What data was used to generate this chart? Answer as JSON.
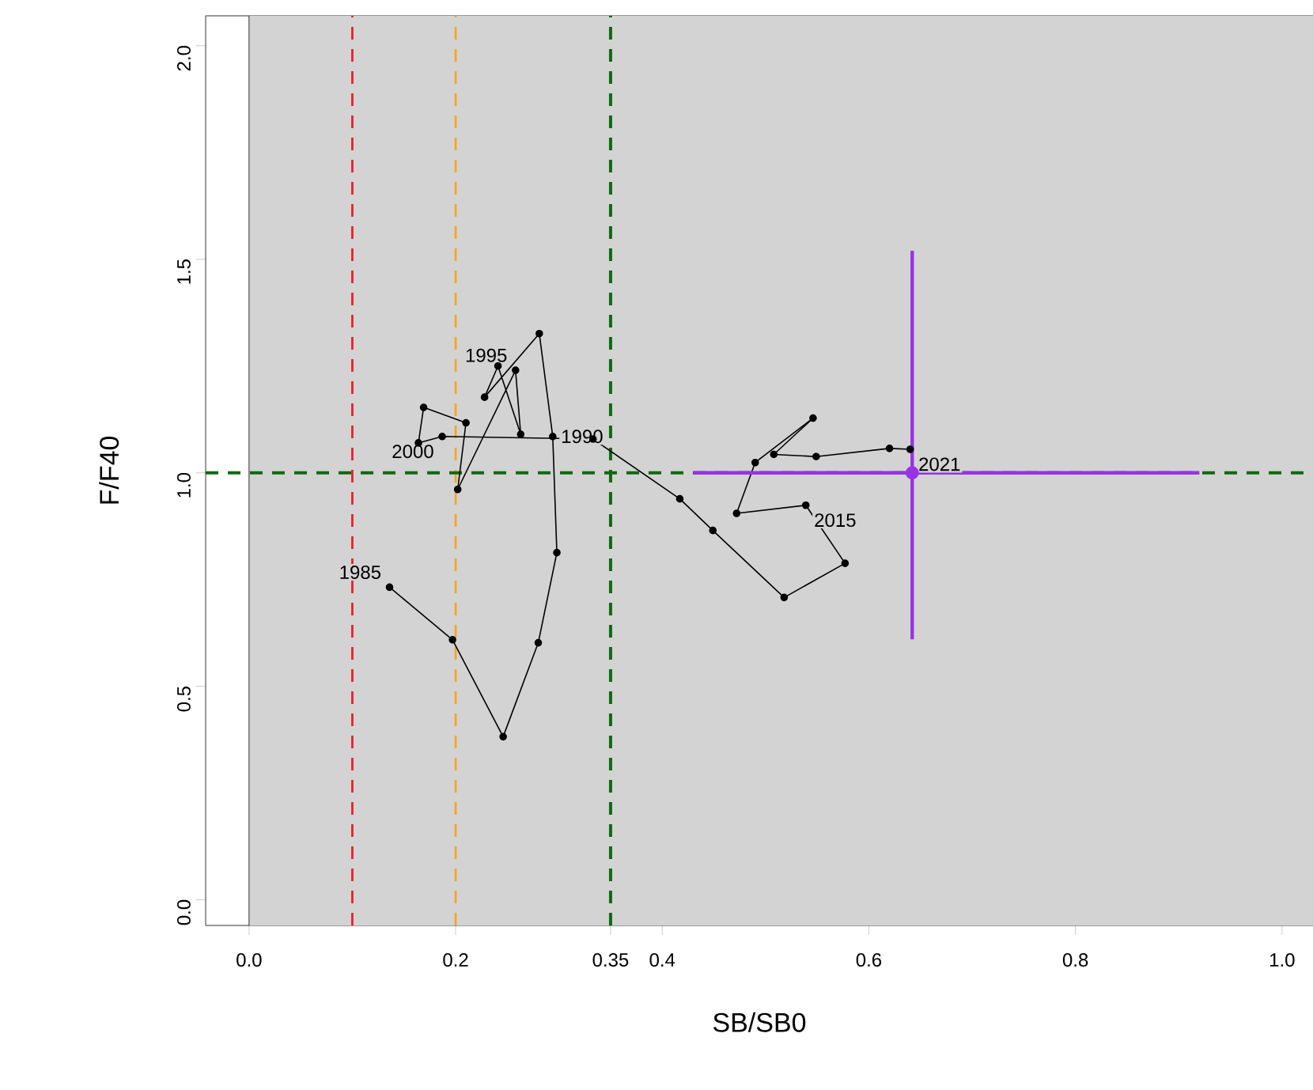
{
  "chart_data": {
    "type": "line",
    "xlabel": "SB/SB0",
    "ylabel": "F/F40",
    "xlim": [
      -0.042,
      1.03
    ],
    "ylim": [
      -0.06,
      2.07
    ],
    "xticks": [
      {
        "value": 0,
        "label": "0.0"
      },
      0.2,
      0.35,
      0.4,
      0.6,
      0.8,
      {
        "value": 1,
        "label": "1.0"
      }
    ],
    "yticks": [
      {
        "value": 0,
        "label": "0.0"
      },
      0.5,
      {
        "value": 1,
        "label": "1.0"
      },
      1.5,
      {
        "value": 2,
        "label": "2.0"
      }
    ],
    "grid": false,
    "marker": "circle",
    "line_style": "solid",
    "series": [
      {
        "color": "#000000",
        "x": [
          0.136,
          0.197,
          0.246,
          0.28,
          0.298,
          0.294,
          0.281,
          0.228,
          0.241,
          0.263,
          0.258,
          0.202,
          0.21,
          0.169,
          0.164,
          0.187,
          0.333,
          0.417,
          0.449,
          0.518,
          0.577,
          0.539,
          0.472,
          0.49,
          0.546,
          0.508,
          0.549,
          0.62,
          0.64
        ],
        "values": [
          0.732,
          0.609,
          0.382,
          0.602,
          0.813,
          1.085,
          1.326,
          1.177,
          1.25,
          1.09,
          1.24,
          0.961,
          1.117,
          1.153,
          1.07,
          1.085,
          1.079,
          0.939,
          0.865,
          0.708,
          0.788,
          0.924,
          0.905,
          1.024,
          1.128,
          1.043,
          1.038,
          1.057,
          1.055
        ]
      },
      {
        "type": "scatter",
        "color": "#9932e6",
        "marker": "circle",
        "x": [
          0.642
        ],
        "values": [
          1.0
        ],
        "errors": [
          [
            0.61,
            1.52
          ]
        ],
        "xerrors": [
          [
            0.43,
            0.92
          ]
        ]
      }
    ],
    "ref_lines": [
      {
        "axis": "x",
        "value": 0.1,
        "color": "#e8202a",
        "line_style": "dashed"
      },
      {
        "axis": "x",
        "value": 0.2,
        "color": "#f5a623",
        "line_style": "dashed"
      },
      {
        "axis": "x",
        "value": 0.35,
        "color": "#0e6b0e",
        "line_style": "dashed"
      },
      {
        "axis": "y",
        "value": 1.0,
        "color": "#0e6b0e",
        "line_style": "dashed"
      }
    ],
    "bands": [
      {
        "axis": "x",
        "from": 0,
        "to": 1.03,
        "color": "#d3d3d3"
      }
    ],
    "annotations": [
      {
        "text": "1985",
        "x": 0.136,
        "y": 0.732
      },
      {
        "text": "1990",
        "x": 0.294,
        "y": 1.085
      },
      {
        "text": "1995",
        "x": 0.258,
        "y": 1.24
      },
      {
        "text": "2000",
        "x": 0.187,
        "y": 1.085
      },
      {
        "text": "2015",
        "x": 0.539,
        "y": 0.924
      },
      {
        "text": "2021",
        "x": 0.64,
        "y": 1.055
      }
    ]
  }
}
